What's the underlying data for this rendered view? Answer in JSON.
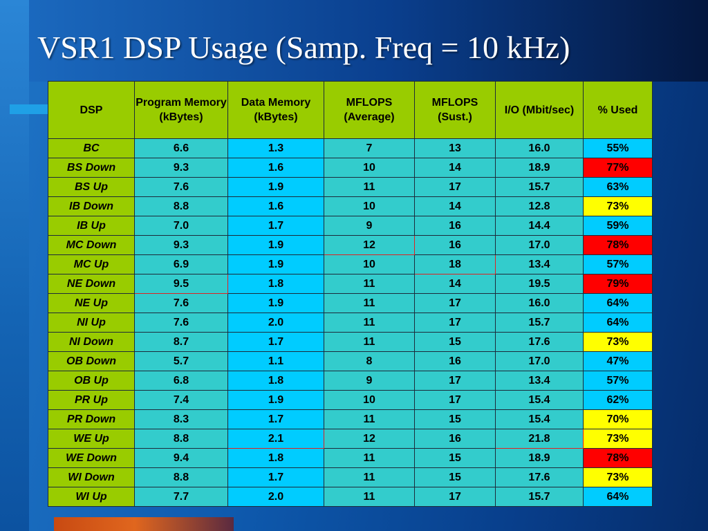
{
  "title": "VSR1 DSP Usage (Samp. Freq = 10 kHz)",
  "colors": {
    "header_bg": "#99cc00",
    "teal": "#33cccc",
    "cyan": "#00ccff",
    "over_limit_text": "#e81010",
    "high_usage": "#ff0000",
    "medium_usage": "#ffff00"
  },
  "table": {
    "headers": [
      "DSP",
      "Program Memory (kBytes)",
      "Data Memory (kBytes)",
      "MFLOPS (Average)",
      "MFLOPS (Sust.)",
      "I/O (Mbit/sec)",
      "% Used"
    ],
    "rows": [
      {
        "dsp": "BC",
        "prog": "6.6",
        "data": "1.3",
        "avg": "7",
        "sust": "13",
        "io": "16.0",
        "used": "55%",
        "used_level": "normal",
        "flags": []
      },
      {
        "dsp": "BS Down",
        "prog": "9.3",
        "data": "1.6",
        "avg": "10",
        "sust": "14",
        "io": "18.9",
        "used": "77%",
        "used_level": "high",
        "flags": []
      },
      {
        "dsp": "BS Up",
        "prog": "7.6",
        "data": "1.9",
        "avg": "11",
        "sust": "17",
        "io": "15.7",
        "used": "63%",
        "used_level": "normal",
        "flags": []
      },
      {
        "dsp": "IB Down",
        "prog": "8.8",
        "data": "1.6",
        "avg": "10",
        "sust": "14",
        "io": "12.8",
        "used": "73%",
        "used_level": "medium",
        "flags": []
      },
      {
        "dsp": "IB Up",
        "prog": "7.0",
        "data": "1.7",
        "avg": "9",
        "sust": "16",
        "io": "14.4",
        "used": "59%",
        "used_level": "normal",
        "flags": []
      },
      {
        "dsp": "MC Down",
        "prog": "9.3",
        "data": "1.9",
        "avg": "12",
        "sust": "16",
        "io": "17.0",
        "used": "78%",
        "used_level": "high",
        "flags": [
          "avg"
        ]
      },
      {
        "dsp": "MC Up",
        "prog": "6.9",
        "data": "1.9",
        "avg": "10",
        "sust": "18",
        "io": "13.4",
        "used": "57%",
        "used_level": "normal",
        "flags": [
          "sust"
        ]
      },
      {
        "dsp": "NE Down",
        "prog": "9.5",
        "data": "1.8",
        "avg": "11",
        "sust": "14",
        "io": "19.5",
        "used": "79%",
        "used_level": "high",
        "flags": [
          "prog"
        ]
      },
      {
        "dsp": "NE Up",
        "prog": "7.6",
        "data": "1.9",
        "avg": "11",
        "sust": "17",
        "io": "16.0",
        "used": "64%",
        "used_level": "normal",
        "flags": []
      },
      {
        "dsp": "NI  Up",
        "prog": "7.6",
        "data": "2.0",
        "avg": "11",
        "sust": "17",
        "io": "15.7",
        "used": "64%",
        "used_level": "normal",
        "flags": []
      },
      {
        "dsp": "NI Down",
        "prog": "8.7",
        "data": "1.7",
        "avg": "11",
        "sust": "15",
        "io": "17.6",
        "used": "73%",
        "used_level": "medium",
        "flags": []
      },
      {
        "dsp": "OB Down",
        "prog": "5.7",
        "data": "1.1",
        "avg": "8",
        "sust": "16",
        "io": "17.0",
        "used": "47%",
        "used_level": "normal",
        "flags": []
      },
      {
        "dsp": "OB Up",
        "prog": "6.8",
        "data": "1.8",
        "avg": "9",
        "sust": "17",
        "io": "13.4",
        "used": "57%",
        "used_level": "normal",
        "flags": []
      },
      {
        "dsp": "PR  Up",
        "prog": "7.4",
        "data": "1.9",
        "avg": "10",
        "sust": "17",
        "io": "15.4",
        "used": "62%",
        "used_level": "normal",
        "flags": []
      },
      {
        "dsp": "PR Down",
        "prog": "8.3",
        "data": "1.7",
        "avg": "11",
        "sust": "15",
        "io": "15.4",
        "used": "70%",
        "used_level": "medium",
        "flags": []
      },
      {
        "dsp": "WE  Up",
        "prog": "8.8",
        "data": "2.1",
        "avg": "12",
        "sust": "16",
        "io": "21.8",
        "used": "73%",
        "used_level": "medium",
        "flags": [
          "data",
          "io"
        ]
      },
      {
        "dsp": "WE Down",
        "prog": "9.4",
        "data": "1.8",
        "avg": "11",
        "sust": "15",
        "io": "18.9",
        "used": "78%",
        "used_level": "high",
        "flags": []
      },
      {
        "dsp": "WI Down",
        "prog": "8.8",
        "data": "1.7",
        "avg": "11",
        "sust": "15",
        "io": "17.6",
        "used": "73%",
        "used_level": "medium",
        "flags": []
      },
      {
        "dsp": "WI Up",
        "prog": "7.7",
        "data": "2.0",
        "avg": "11",
        "sust": "17",
        "io": "15.7",
        "used": "64%",
        "used_level": "normal",
        "flags": []
      }
    ]
  }
}
